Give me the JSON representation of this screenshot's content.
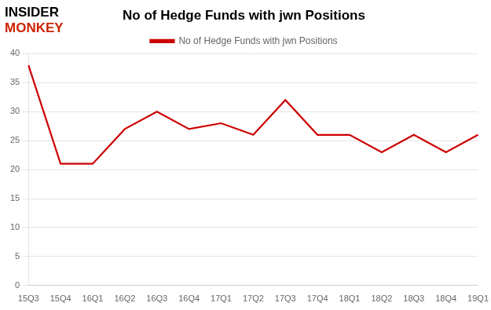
{
  "chart_data": {
    "type": "line",
    "title": "No of Hedge Funds with jwn Positions",
    "categories": [
      "15Q3",
      "15Q4",
      "16Q1",
      "16Q2",
      "16Q3",
      "16Q4",
      "17Q1",
      "17Q2",
      "17Q3",
      "17Q4",
      "18Q1",
      "18Q2",
      "18Q3",
      "18Q4",
      "19Q1"
    ],
    "series": [
      {
        "name": "No of Hedge Funds with jwn Positions",
        "color": "#CC0000",
        "values": [
          38,
          21,
          21,
          27,
          30,
          27,
          28,
          26,
          32,
          26,
          26,
          23,
          26,
          23,
          26
        ]
      }
    ],
    "ylim": [
      0,
      40
    ],
    "yticks": [
      0,
      5,
      10,
      15,
      20,
      25,
      30,
      35,
      40
    ],
    "grid": "y",
    "legend": "top",
    "annotations": [
      {
        "text": "INSIDER",
        "color": "#000000"
      },
      {
        "text": "MONKEY",
        "color": "#CC2200"
      }
    ]
  }
}
